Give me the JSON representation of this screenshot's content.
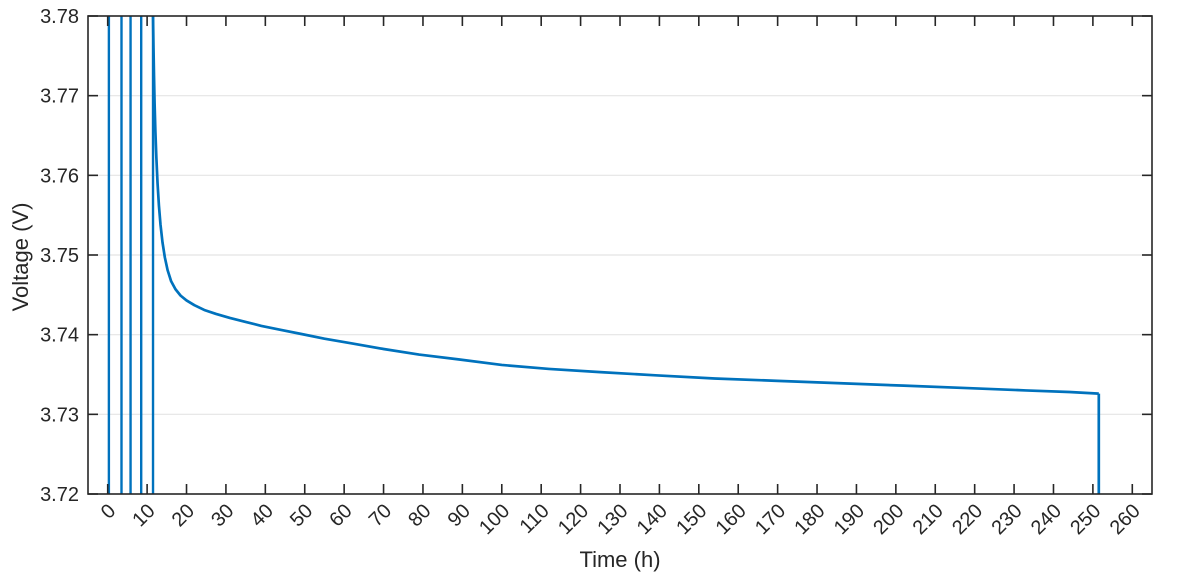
{
  "figure": {
    "xlabel": "Time (h)",
    "ylabel": "Voltage (V)"
  },
  "chart_data": {
    "type": "line",
    "title": "",
    "xlabel": "Time (h)",
    "ylabel": "Voltage (V)",
    "xlim": [
      -5,
      265
    ],
    "ylim": [
      3.72,
      3.78
    ],
    "xticks": [
      0,
      10,
      20,
      30,
      40,
      50,
      60,
      70,
      80,
      90,
      100,
      110,
      120,
      130,
      140,
      150,
      160,
      170,
      180,
      190,
      200,
      210,
      220,
      230,
      240,
      250,
      260
    ],
    "yticks": [
      3.72,
      3.73,
      3.74,
      3.75,
      3.76,
      3.77,
      3.78
    ],
    "grid": "horizontal-only",
    "legend_position": "none",
    "line_color": "#0072BD",
    "axis_color": "#262626",
    "grid_color": "#e4e4e4",
    "tick_label_rotation_x_deg": 45,
    "series": [
      {
        "name": "initial-pulse-cycles",
        "type": "vlines",
        "x": [
          0.3,
          3.5,
          5.8,
          8.5,
          11.5
        ]
      },
      {
        "name": "relaxation-voltage",
        "type": "line",
        "points": [
          [
            11.5,
            3.78
          ],
          [
            11.62,
            3.776
          ],
          [
            11.75,
            3.7725
          ],
          [
            11.9,
            3.769
          ],
          [
            12.1,
            3.7655
          ],
          [
            12.35,
            3.7622
          ],
          [
            12.65,
            3.759
          ],
          [
            13.0,
            3.7562
          ],
          [
            13.4,
            3.7538
          ],
          [
            13.9,
            3.7516
          ],
          [
            14.5,
            3.7497
          ],
          [
            15.2,
            3.7481
          ],
          [
            16.1,
            3.7467
          ],
          [
            17.2,
            3.7457
          ],
          [
            18.5,
            3.7449
          ],
          [
            20.0,
            3.7443
          ],
          [
            22.0,
            3.7437
          ],
          [
            24.5,
            3.7431
          ],
          [
            27.5,
            3.7426
          ],
          [
            31.0,
            3.7421
          ],
          [
            35.0,
            3.7416
          ],
          [
            39.0,
            3.7411
          ],
          [
            44.0,
            3.7406
          ],
          [
            49.0,
            3.7401
          ],
          [
            55.0,
            3.7395
          ],
          [
            62.0,
            3.7389
          ],
          [
            70.0,
            3.7382
          ],
          [
            79.0,
            3.7375
          ],
          [
            89.0,
            3.7369
          ],
          [
            100.0,
            3.7362
          ],
          [
            112.0,
            3.7357
          ],
          [
            125.0,
            3.7353
          ],
          [
            139.0,
            3.7349
          ],
          [
            154.0,
            3.7345
          ],
          [
            170.0,
            3.7342
          ],
          [
            186.0,
            3.7339
          ],
          [
            202.0,
            3.7336
          ],
          [
            218.0,
            3.7333
          ],
          [
            233.0,
            3.733
          ],
          [
            244.0,
            3.7328
          ],
          [
            251.5,
            3.7326
          ]
        ]
      },
      {
        "name": "end-discharge-drop",
        "type": "line",
        "points": [
          [
            251.5,
            3.7326
          ],
          [
            251.5,
            3.72
          ]
        ]
      }
    ]
  }
}
